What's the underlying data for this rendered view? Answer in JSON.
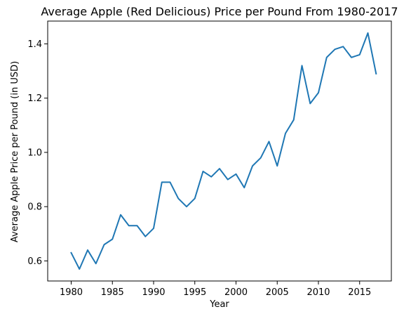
{
  "chart_data": {
    "type": "line",
    "title": "Average Apple (Red Delicious) Price per Pound From 1980-2017",
    "xlabel": "Year",
    "ylabel": "Average Apple Price per Pound (in USD)",
    "xlim": [
      1977.15,
      2018.85
    ],
    "ylim": [
      0.526,
      1.484
    ],
    "xticks": [
      1980,
      1985,
      1990,
      1995,
      2000,
      2005,
      2010,
      2015
    ],
    "yticks": [
      0.6,
      0.8,
      1.0,
      1.2,
      1.4
    ],
    "ytick_labels": [
      "0.6",
      "0.8",
      "1.0",
      "1.2",
      "1.4"
    ],
    "grid": false,
    "series": [
      {
        "color": "#1f77b4",
        "x": [
          1980,
          1981,
          1982,
          1983,
          1984,
          1985,
          1986,
          1987,
          1988,
          1989,
          1990,
          1991,
          1992,
          1993,
          1994,
          1995,
          1996,
          1997,
          1998,
          1999,
          2000,
          2001,
          2002,
          2003,
          2004,
          2005,
          2006,
          2007,
          2008,
          2009,
          2010,
          2011,
          2012,
          2013,
          2014,
          2015,
          2016,
          2017
        ],
        "y": [
          0.63,
          0.57,
          0.64,
          0.59,
          0.66,
          0.68,
          0.77,
          0.73,
          0.73,
          0.69,
          0.72,
          0.89,
          0.89,
          0.83,
          0.8,
          0.83,
          0.93,
          0.91,
          0.94,
          0.9,
          0.92,
          0.87,
          0.95,
          0.98,
          1.04,
          0.95,
          1.07,
          1.12,
          1.32,
          1.18,
          1.22,
          1.35,
          1.38,
          1.39,
          1.35,
          1.36,
          1.44,
          1.29
        ]
      }
    ]
  }
}
